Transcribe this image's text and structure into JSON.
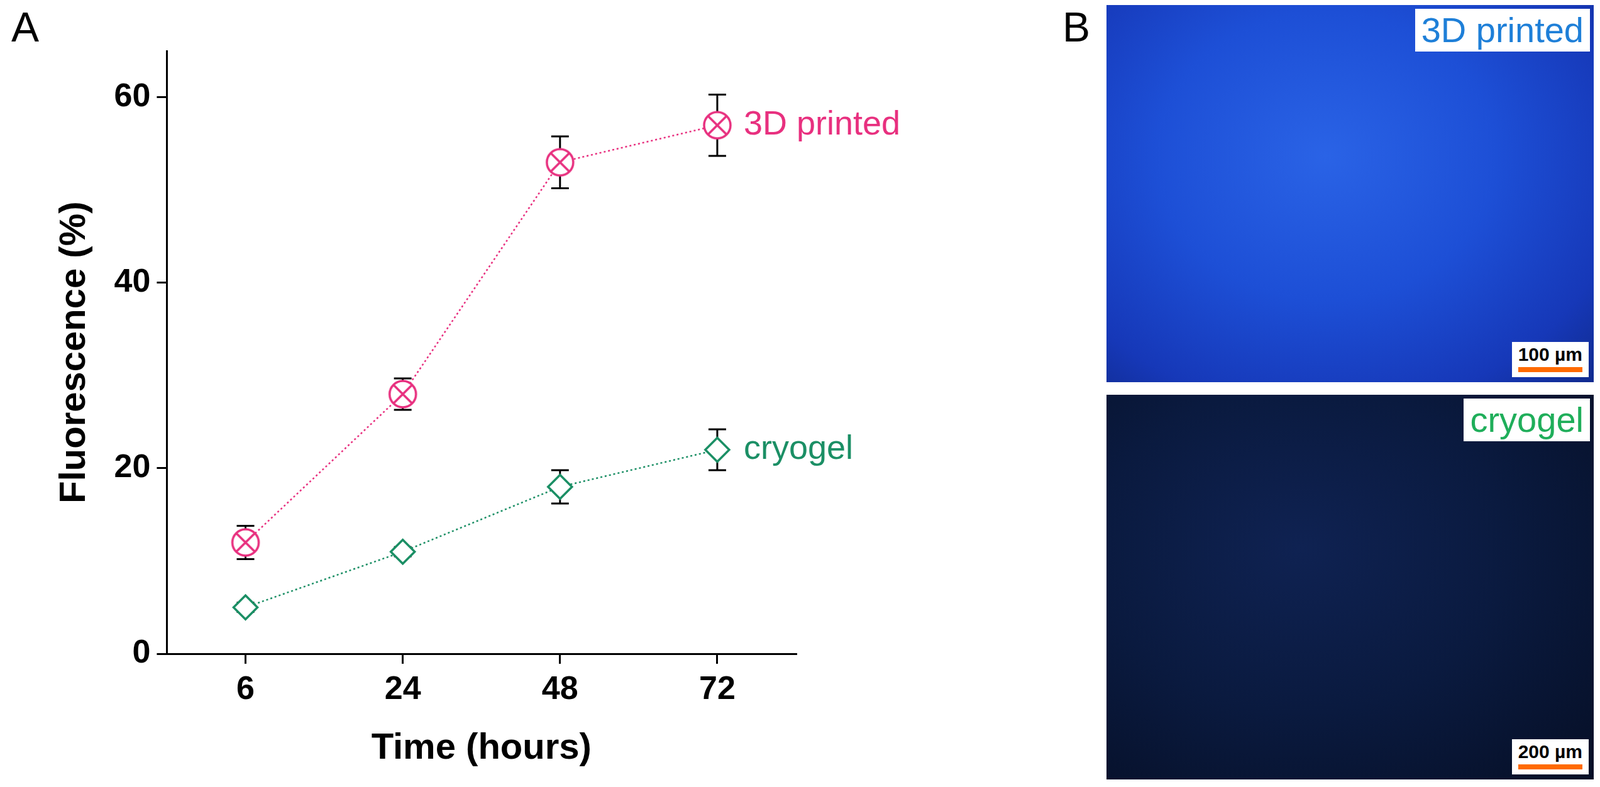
{
  "chart_data": {
    "type": "line",
    "x_label": "Time (hours)",
    "y_label": "Fluorescence (%)",
    "categories": [
      "6",
      "24",
      "48",
      "72"
    ],
    "ylim": [
      0,
      65
    ],
    "yticks": [
      0,
      20,
      40,
      60
    ],
    "grid": false,
    "legend": "right",
    "series": [
      {
        "name": "3D printed",
        "color": "#e8307f",
        "marker": "circled_x",
        "line_style": "dotted",
        "values": [
          12,
          28,
          53,
          57
        ],
        "errors": [
          1.8,
          1.7,
          2.8,
          3.3
        ]
      },
      {
        "name": "cryogel",
        "color": "#1b8f65",
        "marker": "diamond",
        "line_style": "dotted",
        "values": [
          5,
          11,
          18,
          22
        ],
        "errors": [
          0.5,
          0.5,
          1.8,
          2.2
        ]
      }
    ]
  },
  "panel_labels": [
    "A",
    "B"
  ],
  "images": [
    {
      "title": "3D printed",
      "title_color": "#1e7fd8",
      "scale_bar": "100 µm"
    },
    {
      "title": "cryogel",
      "title_color": "#1fae5a",
      "scale_bar": "200 µm"
    }
  ]
}
